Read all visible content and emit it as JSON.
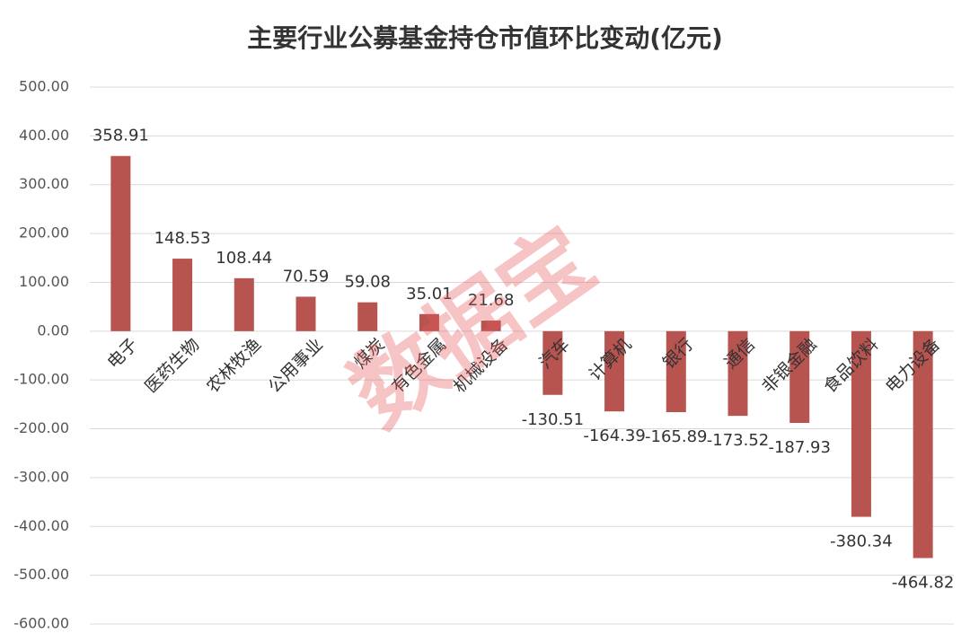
{
  "chart_data": {
    "type": "bar",
    "title": "主要行业公募基金持仓市值环比变动(亿元)",
    "watermark": "数据宝",
    "categories": [
      "电子",
      "医药生物",
      "农林牧渔",
      "公用事业",
      "煤炭",
      "有色金属",
      "机械设备",
      "汽车",
      "计算机",
      "银行",
      "通信",
      "非银金融",
      "食品饮料",
      "电力设备"
    ],
    "values": [
      358.91,
      148.53,
      108.44,
      70.59,
      59.08,
      35.01,
      21.68,
      -130.51,
      -164.39,
      -165.89,
      -173.52,
      -187.93,
      -380.34,
      -464.82
    ],
    "color": "#b85450",
    "ylim": [
      -600,
      500
    ],
    "yticks": [
      {
        "value": -600,
        "label": "-600.00"
      },
      {
        "value": -500,
        "label": "-500.00"
      },
      {
        "value": -400,
        "label": "-400.00"
      },
      {
        "value": -300,
        "label": "-300.00"
      },
      {
        "value": -200,
        "label": "-200.00"
      },
      {
        "value": -100,
        "label": "-100.00"
      },
      {
        "value": 0,
        "label": "0.00"
      },
      {
        "value": 100,
        "label": "100.00"
      },
      {
        "value": 200,
        "label": "200.00"
      },
      {
        "value": 300,
        "label": "300.00"
      },
      {
        "value": 400,
        "label": "400.00"
      },
      {
        "value": 500,
        "label": "500.00"
      }
    ],
    "grid": true
  }
}
